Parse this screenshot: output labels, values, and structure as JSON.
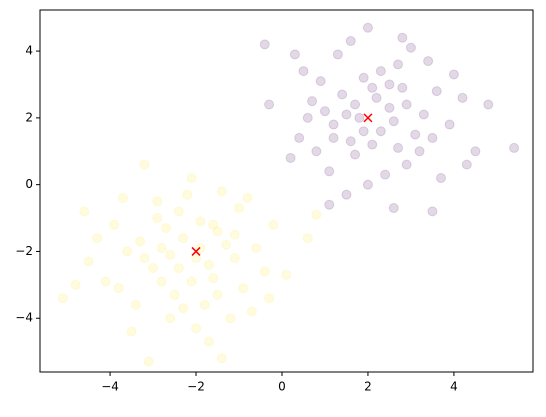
{
  "chart_data": {
    "type": "scatter",
    "xlim": [
      -5.63,
      5.84
    ],
    "ylim": [
      -5.61,
      5.23
    ],
    "xticks": [
      {
        "value": -4,
        "label": "−4"
      },
      {
        "value": -2,
        "label": "−2"
      },
      0,
      2,
      4
    ],
    "yticks": [
      {
        "value": -4,
        "label": "−4"
      },
      {
        "value": -2,
        "label": "−2"
      },
      0,
      2,
      4
    ],
    "grid": false,
    "series": [
      {
        "color": "#440154",
        "alpha": 0.15,
        "marker": "circle",
        "x": [
          2.0,
          5.4,
          -0.4,
          0.7,
          4.8,
          3.5,
          1.1,
          2.6,
          -0.3,
          0.4,
          1.5,
          2.3,
          2.8,
          1.2,
          1.9,
          2.5,
          3.1,
          1.7,
          2.2,
          0.9,
          3.6,
          1.4,
          2.9,
          1.6,
          3.3,
          0.8,
          2.1,
          2.7,
          1.0,
          3.9,
          2.4,
          1.8,
          2.6,
          0.5,
          3.4,
          1.3,
          4.2,
          2.0,
          0.2,
          4.5,
          1.5,
          3.0,
          2.3,
          1.1,
          3.7,
          0.6,
          2.9,
          1.9,
          4.0,
          3.2,
          1.6,
          0.3,
          2.7,
          2.1,
          1.7,
          2.5,
          3.5,
          1.2,
          4.3,
          2.8
        ],
        "values": [
          4.7,
          1.1,
          4.2,
          2.5,
          2.4,
          -0.8,
          -0.6,
          -0.7,
          2.4,
          1.4,
          2.1,
          1.6,
          2.9,
          1.8,
          3.2,
          2.3,
          1.5,
          0.9,
          2.6,
          3.1,
          2.8,
          2.7,
          0.6,
          1.3,
          2.1,
          1.0,
          1.2,
          3.6,
          2.2,
          1.8,
          0.3,
          2.0,
          1.9,
          3.4,
          3.7,
          3.9,
          2.6,
          0.0,
          0.8,
          1.0,
          -0.3,
          4.1,
          3.4,
          0.4,
          0.2,
          2.0,
          2.4,
          1.6,
          3.3,
          1.0,
          4.3,
          3.9,
          1.1,
          2.9,
          2.4,
          3.0,
          1.4,
          1.4,
          0.6,
          4.4
        ]
      },
      {
        "color": "#fde725",
        "alpha": 0.15,
        "marker": "circle",
        "x": [
          -5.1,
          -1.4,
          -3.1,
          0.1,
          -3.2,
          0.8,
          -4.6,
          -4.5,
          0.6,
          -2.0,
          -2.3,
          -1.7,
          -2.6,
          -1.5,
          -2.8,
          -1.1,
          -2.4,
          -3.3,
          -0.9,
          -1.9,
          -2.1,
          -3.0,
          -1.3,
          -2.7,
          -0.6,
          -3.6,
          -1.8,
          -2.5,
          -1.0,
          -3.9,
          -2.2,
          -0.4,
          -3.4,
          -1.6,
          -2.9,
          -1.2,
          -4.1,
          -0.2,
          -2.0,
          -3.7,
          -1.4,
          -2.6,
          -0.7,
          -4.3,
          -1.9,
          -2.4,
          -1.6,
          -3.2,
          -2.8,
          -1.1,
          -0.3,
          -3.5,
          -2.1,
          -4.8,
          -1.7,
          -2.3,
          -0.8,
          -3.8,
          -1.5,
          -2.9
        ],
        "values": [
          -3.4,
          -5.2,
          -5.3,
          -2.7,
          0.6,
          -0.9,
          -0.8,
          -2.3,
          -1.6,
          -2.2,
          -1.6,
          -2.4,
          -2.1,
          -1.4,
          -2.9,
          -2.2,
          -0.8,
          -1.7,
          -3.1,
          -1.1,
          -2.9,
          -2.5,
          -1.8,
          -1.3,
          -1.9,
          -2.0,
          -3.6,
          -3.3,
          -0.7,
          -1.2,
          -0.3,
          -2.6,
          -3.6,
          -2.8,
          -0.5,
          -4.0,
          -2.9,
          -1.2,
          -4.3,
          -0.4,
          -0.2,
          -4.0,
          -3.8,
          -1.6,
          -1.9,
          -2.5,
          -1.2,
          -2.2,
          -1.9,
          -1.5,
          -3.4,
          -4.4,
          0.2,
          -3.0,
          -4.7,
          -3.7,
          -0.4,
          -3.1,
          -3.3,
          -1.0
        ]
      },
      {
        "color": "#ff0000",
        "alpha": 1,
        "marker": "x",
        "x": [
          2.0,
          -2.0
        ],
        "values": [
          2.0,
          -2.0
        ]
      }
    ]
  }
}
